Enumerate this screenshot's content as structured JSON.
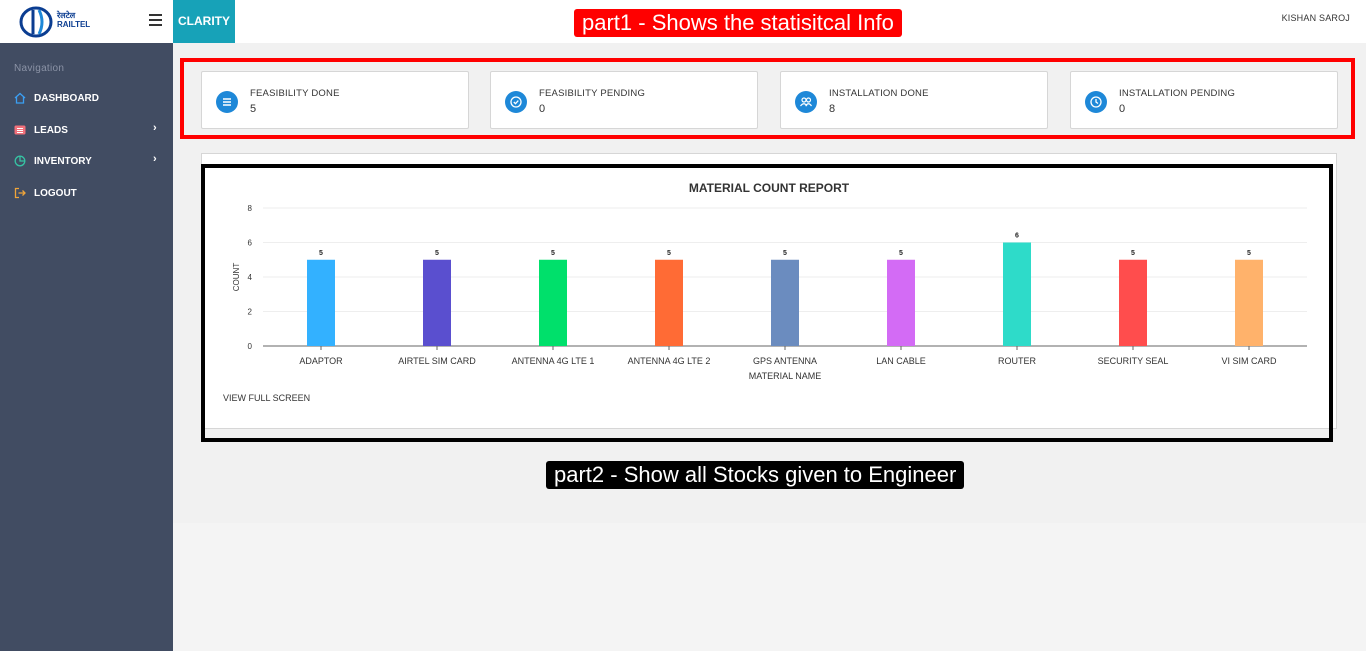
{
  "header": {
    "logo_text_line1": "रेलटेल",
    "logo_text_line2": "RAILTEL",
    "brand": "CLARITY",
    "user": "KISHAN SAROJ"
  },
  "sidebar": {
    "heading": "Navigation",
    "items": [
      {
        "label": "DASHBOARD",
        "icon": "home-icon",
        "has_submenu": false,
        "icon_color": "#3b9ff3"
      },
      {
        "label": "LEADS",
        "icon": "list-icon",
        "has_submenu": true,
        "icon_color": "#f1707b"
      },
      {
        "label": "INVENTORY",
        "icon": "pie-chart-icon",
        "has_submenu": true,
        "icon_color": "#36c2a3"
      },
      {
        "label": "LOGOUT",
        "icon": "logout-icon",
        "has_submenu": false,
        "icon_color": "#f0a53a"
      }
    ]
  },
  "stats": [
    {
      "title": "FEASIBILITY DONE",
      "value": "5",
      "icon": "list-icon"
    },
    {
      "title": "FEASIBILITY PENDING",
      "value": "0",
      "icon": "check-circle-icon"
    },
    {
      "title": "INSTALLATION DONE",
      "value": "8",
      "icon": "users-icon"
    },
    {
      "title": "INSTALLATION PENDING",
      "value": "0",
      "icon": "clock-icon"
    }
  ],
  "annotations": {
    "part1": "part1 - Shows the statisitcal Info",
    "part2": "part2 - Show all Stocks given to Engineer"
  },
  "chart_data": {
    "type": "bar",
    "title": "MATERIAL COUNT REPORT",
    "xlabel": "MATERIAL NAME",
    "ylabel": "COUNT",
    "ylim": [
      0,
      8
    ],
    "yticks": [
      0,
      2,
      4,
      6,
      8
    ],
    "grid": true,
    "categories": [
      "ADAPTOR",
      "AIRTEL SIM CARD",
      "ANTENNA 4G LTE 1",
      "ANTENNA 4G LTE 2",
      "GPS ANTENNA",
      "LAN CABLE",
      "ROUTER",
      "SECURITY SEAL",
      "VI SIM CARD"
    ],
    "values": [
      5,
      5,
      5,
      5,
      5,
      5,
      6,
      5,
      5
    ],
    "colors": [
      "#33b1ff",
      "#5a4fcf",
      "#00e06b",
      "#ff6b35",
      "#6b8cbf",
      "#d36bf5",
      "#2edbc9",
      "#ff4d4d",
      "#ffb26b"
    ],
    "data_labels": true
  },
  "chart_footer": {
    "view_full": "VIEW FULL SCREEN"
  }
}
